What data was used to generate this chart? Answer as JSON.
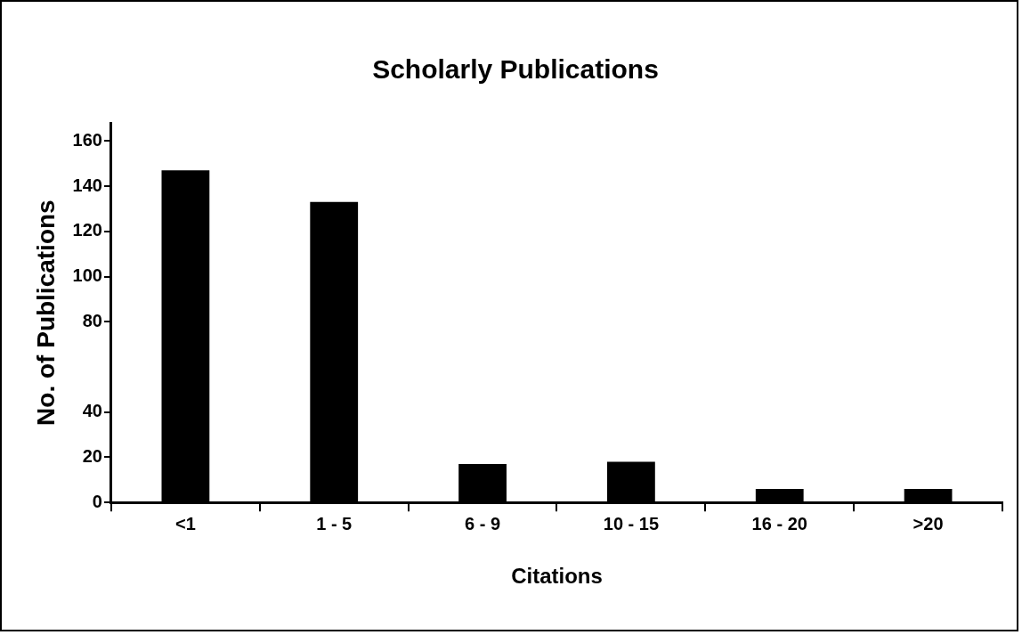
{
  "chart_data": {
    "type": "bar",
    "title": "Scholarly Publications",
    "xlabel": "Citations",
    "ylabel": "No. of Publications",
    "categories": [
      "<1",
      "1 - 5",
      "6 - 9",
      "10 - 15",
      "16 - 20",
      ">20"
    ],
    "values": [
      147,
      133,
      17,
      18,
      6,
      6
    ],
    "color": "#000000",
    "ylim": [
      0,
      168
    ],
    "yticks": [
      0,
      20,
      40,
      80,
      100,
      120,
      140,
      160
    ],
    "grid": false,
    "legend": false
  }
}
